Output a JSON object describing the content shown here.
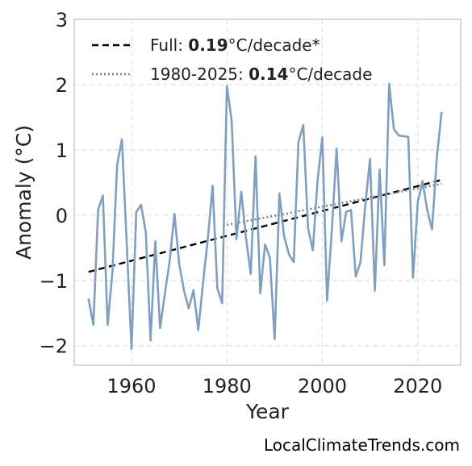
{
  "chart_data": {
    "type": "line",
    "xlabel": "Year",
    "ylabel": "Anomaly (°C)",
    "xlim": [
      1948,
      2029
    ],
    "ylim": [
      -2.3,
      3
    ],
    "xticks": [
      1960,
      1980,
      2000,
      2020
    ],
    "yticks": [
      -2,
      -1,
      0,
      1,
      2,
      3
    ],
    "ytick_labels": [
      "−2",
      "−1",
      "0",
      "1",
      "2",
      "3"
    ],
    "grid": true,
    "legend_position": "top-left",
    "colors": {
      "series": "#7f9fc0",
      "full_trend": "#000000",
      "recent_trend": "#808080",
      "grid": "#e0e0e0",
      "frame": "#cccccc"
    },
    "series": [
      {
        "x": [
          1951,
          1952,
          1953,
          1954,
          1955,
          1956,
          1957,
          1958,
          1959,
          1960,
          1961,
          1962,
          1963,
          1964,
          1965,
          1966,
          1967,
          1968,
          1969,
          1970,
          1971,
          1972,
          1973,
          1974,
          1975,
          1976,
          1977,
          1978,
          1979,
          1980,
          1981,
          1982,
          1983,
          1984,
          1985,
          1986,
          1987,
          1988,
          1989,
          1990,
          1991,
          1992,
          1993,
          1994,
          1995,
          1996,
          1997,
          1998,
          1999,
          2000,
          2001,
          2002,
          2003,
          2004,
          2005,
          2006,
          2007,
          2008,
          2009,
          2010,
          2011,
          2012,
          2013,
          2014,
          2015,
          2016,
          2017,
          2018,
          2019,
          2020,
          2021,
          2022,
          2023,
          2024,
          2025
        ],
        "y": [
          -1.28,
          -1.68,
          0.08,
          0.3,
          -1.68,
          -0.88,
          0.77,
          1.16,
          -0.42,
          -2.05,
          0.05,
          0.16,
          -0.26,
          -1.92,
          -0.4,
          -1.73,
          -1.2,
          -0.7,
          0.02,
          -0.75,
          -1.15,
          -1.43,
          -1.15,
          -1.76,
          -1.03,
          -0.36,
          0.45,
          -1.12,
          -1.35,
          1.98,
          1.45,
          -0.37,
          0.36,
          -0.35,
          -0.9,
          0.9,
          -1.2,
          -0.45,
          -0.65,
          -1.9,
          0.33,
          -0.33,
          -0.6,
          -0.72,
          1.12,
          1.38,
          -0.2,
          -0.54,
          0.53,
          1.19,
          -1.31,
          -0.22,
          1.02,
          -0.4,
          0.05,
          0.08,
          -0.94,
          -0.72,
          0.15,
          0.86,
          -1.16,
          0.7,
          -0.77,
          2.01,
          1.32,
          1.22,
          1.21,
          1.2,
          -0.96,
          0.2,
          0.52,
          0.07,
          -0.22,
          0.88,
          1.58
        ]
      }
    ],
    "trends": [
      {
        "label_prefix": "Full: ",
        "label_value": "0.19",
        "label_suffix": "°C/decade*",
        "style": "dashed",
        "x": [
          1951,
          2025
        ],
        "y": [
          -0.87,
          0.54
        ]
      },
      {
        "label_prefix": "1980-2025: ",
        "label_value": "0.14",
        "label_suffix": "°C/decade",
        "style": "dotted",
        "x": [
          1980,
          2025
        ],
        "y": [
          -0.15,
          0.48
        ]
      }
    ]
  },
  "credit": "LocalClimateTrends.com"
}
